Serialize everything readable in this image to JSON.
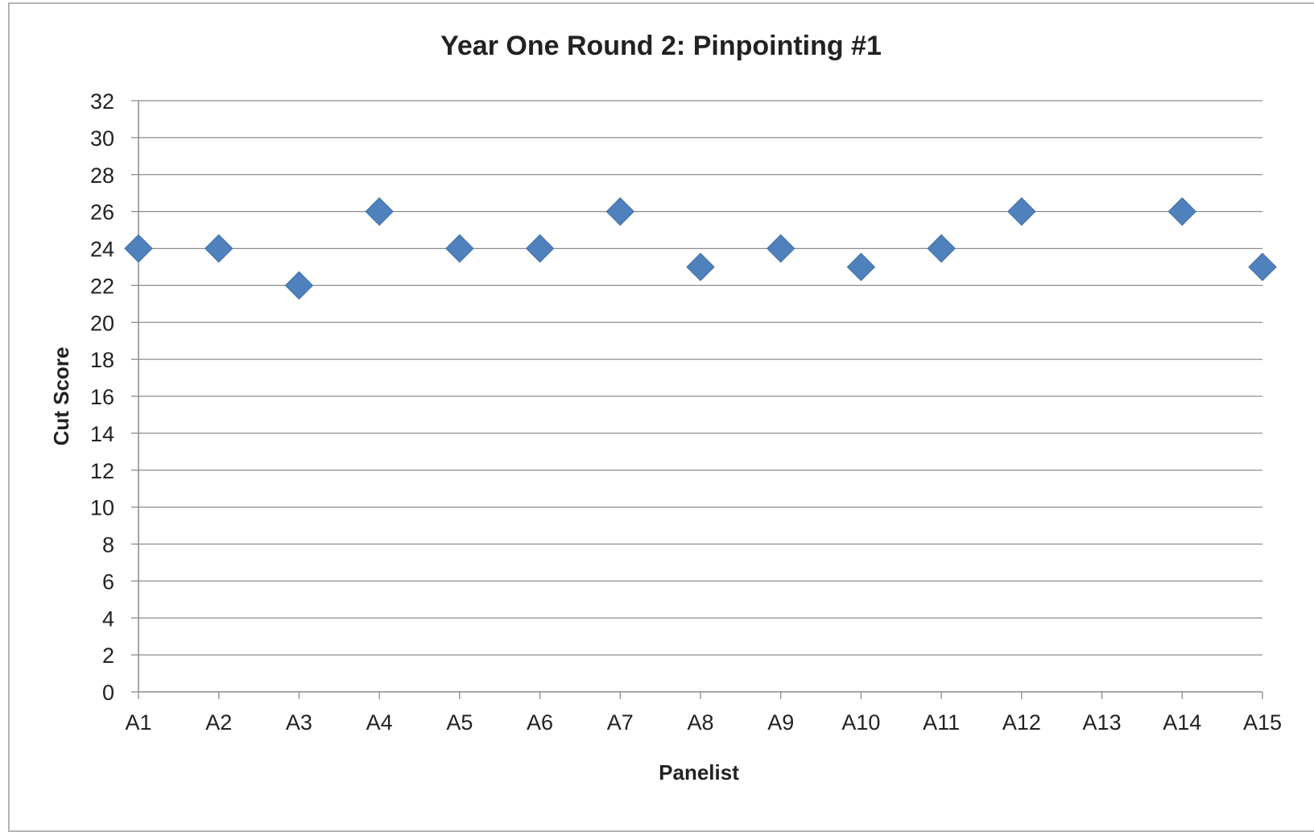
{
  "chart_data": {
    "type": "scatter",
    "title": "Year One Round 2: Pinpointing #1",
    "xlabel": "Panelist",
    "ylabel": "Cut Score",
    "categories": [
      "A1",
      "A2",
      "A3",
      "A4",
      "A5",
      "A6",
      "A7",
      "A8",
      "A9",
      "A10",
      "A11",
      "A12",
      "A13",
      "A14",
      "A15"
    ],
    "series": [
      {
        "values": [
          24,
          24,
          22,
          26,
          24,
          24,
          26,
          23,
          24,
          23,
          24,
          26,
          null,
          26,
          23
        ],
        "color": "#4f81bd",
        "marker": "diamond"
      }
    ],
    "ylim": [
      0,
      32
    ],
    "yticks": [
      "0",
      "2",
      "4",
      "6",
      "8",
      "10",
      "12",
      "14",
      "16",
      "18",
      "20",
      "22",
      "24",
      "26",
      "28",
      "30",
      "32"
    ],
    "grid": true,
    "legend": "none"
  }
}
